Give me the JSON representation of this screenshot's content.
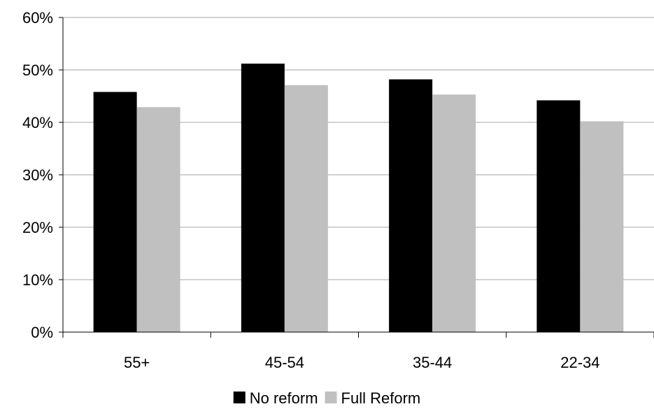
{
  "chart_data": {
    "type": "bar",
    "categories": [
      "55+",
      "45-54",
      "35-44",
      "22-34"
    ],
    "series": [
      {
        "name": "No reform",
        "values": [
          45.8,
          51.2,
          48.2,
          44.2
        ],
        "color": "#000000"
      },
      {
        "name": "Full Reform",
        "values": [
          42.9,
          47.1,
          45.3,
          40.2
        ],
        "color": "#c0c0c0"
      }
    ],
    "ylim": [
      0,
      60
    ],
    "yticks": [
      0,
      10,
      20,
      30,
      40,
      50,
      60
    ],
    "ytick_labels": [
      "0%",
      "10%",
      "20%",
      "30%",
      "40%",
      "50%",
      "60%"
    ],
    "grid": true,
    "legend_position": "bottom"
  }
}
